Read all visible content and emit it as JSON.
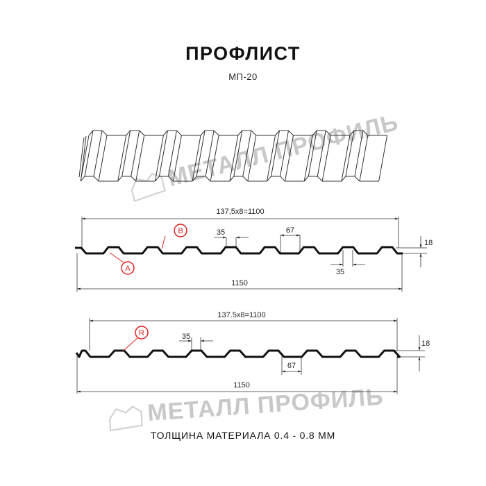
{
  "title": "ПРОФЛИСТ",
  "subtitle": "МП-20",
  "footer": "ТОЛЩИНА МАТЕРИАЛА 0.4 - 0.8 ММ",
  "watermark": "МЕТАЛЛ ПРОФИЛЬ",
  "colors": {
    "profile": "#111111",
    "marker": "#e02020",
    "watermark": "#c8c8c8"
  },
  "drawing1": {
    "pitch_label": "137,5x8=1100",
    "total_label": "1150",
    "top_width_label": "35",
    "bottom_width_label": "35",
    "gap_label": "67",
    "height_label": "18",
    "marker_b": "B",
    "marker_a": "A"
  },
  "drawing2": {
    "pitch_label": "137.5x8=1100",
    "total_label": "1150",
    "top_width_label": "35",
    "gap_label": "67",
    "height_label": "18",
    "marker_r": "R"
  }
}
